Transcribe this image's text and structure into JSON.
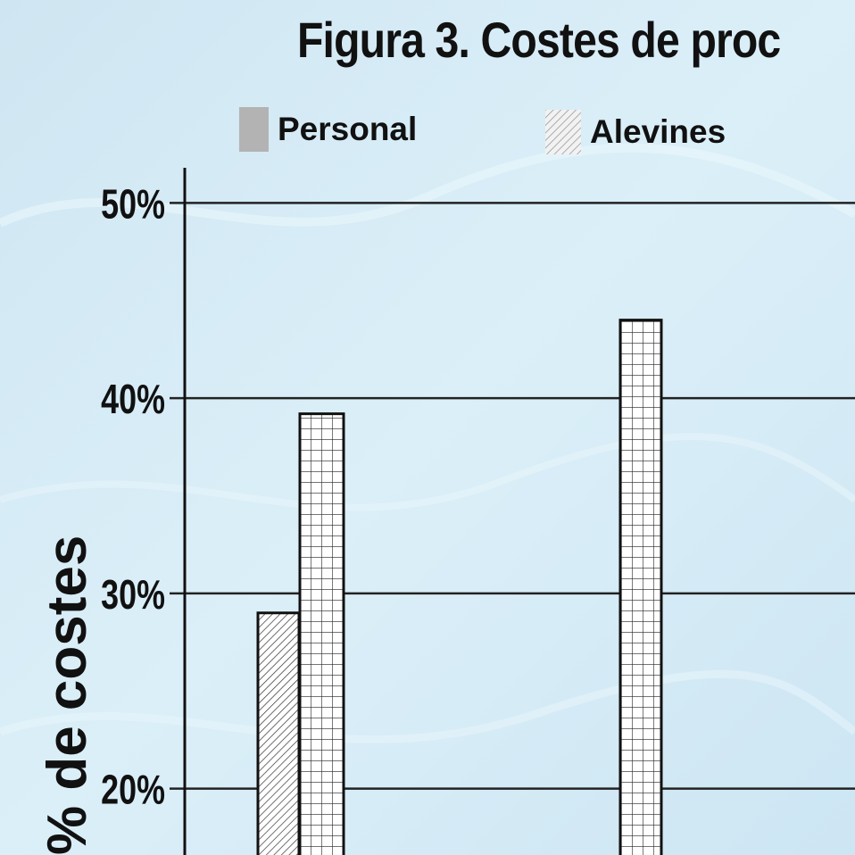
{
  "title": "Figura 3. Costes de proc",
  "legend": [
    {
      "label": "Personal",
      "pattern": "solid-gray"
    },
    {
      "label": "Alevines",
      "pattern": "diagonal-hatch"
    }
  ],
  "colors": {
    "background": "#d6ebf5",
    "personal_fill": "#b3b3b3",
    "alevines_fill": "#ffffff",
    "grid": "#222222"
  },
  "chart_data": {
    "type": "bar",
    "title": "Figura 3. Costes de proc",
    "ylabel": "% de costes",
    "ylim": [
      16.6,
      51.8
    ],
    "y_ticks": [
      "20%",
      "30%",
      "40%",
      "50%"
    ],
    "y_tick_values": [
      20,
      30,
      40,
      50
    ],
    "grid": true,
    "legend_position": "top",
    "groups": [
      {
        "bars": [
          {
            "pattern": "diagonal-hatch",
            "value": 29
          },
          {
            "pattern": "grid",
            "value": 39.2
          }
        ]
      },
      {
        "bars": [
          {
            "pattern": "grid",
            "value": 44
          }
        ]
      }
    ]
  }
}
